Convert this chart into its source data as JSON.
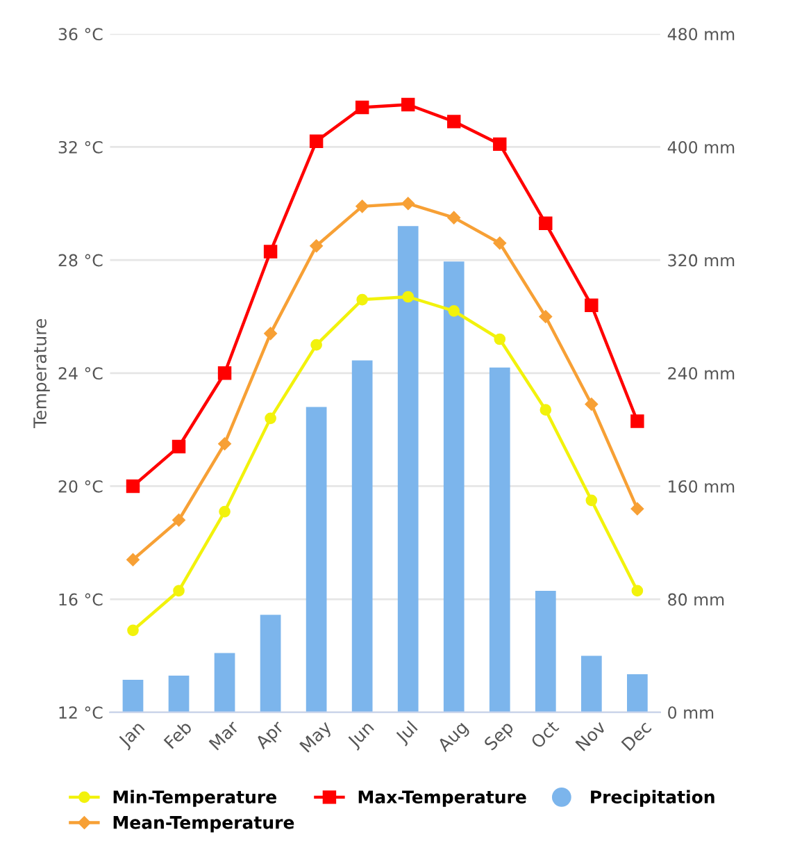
{
  "chart_data": {
    "type": "line",
    "ylabel": "Temperature",
    "categories": [
      "Jan",
      "Feb",
      "Mar",
      "Apr",
      "May",
      "Jun",
      "Jul",
      "Aug",
      "Sep",
      "Oct",
      "Nov",
      "Dec"
    ],
    "series": [
      {
        "name": "Min-Temperature",
        "color": "#f2f20c",
        "marker": "circle",
        "values": [
          14.9,
          16.3,
          19.1,
          22.4,
          25.0,
          26.6,
          26.7,
          26.2,
          25.2,
          22.7,
          19.5,
          16.3
        ]
      },
      {
        "name": "Mean-Temperature",
        "color": "#f7a035",
        "marker": "diamond",
        "values": [
          17.4,
          18.8,
          21.5,
          25.4,
          28.5,
          29.9,
          30.0,
          29.5,
          28.6,
          26.0,
          22.9,
          19.2
        ]
      },
      {
        "name": "Max-Temperature",
        "color": "#ff0000",
        "marker": "square",
        "values": [
          20.0,
          21.4,
          24.0,
          28.3,
          32.2,
          33.4,
          33.5,
          32.9,
          32.1,
          29.3,
          26.4,
          22.3
        ]
      },
      {
        "name": "Precipitation",
        "type": "bar",
        "axis": "y2",
        "color": "#7cb5ec",
        "values": [
          23,
          26,
          42,
          69,
          216,
          249,
          344,
          319,
          244,
          86,
          40,
          27
        ]
      }
    ],
    "ylim": [
      12,
      36
    ],
    "yticks": [
      {
        "value": 12,
        "label": "12 °C"
      },
      {
        "value": 16,
        "label": "16 °C"
      },
      {
        "value": 20,
        "label": "20 °C"
      },
      {
        "value": 24,
        "label": "24 °C"
      },
      {
        "value": 28,
        "label": "28 °C"
      },
      {
        "value": 32,
        "label": "32 °C"
      },
      {
        "value": 36,
        "label": "36 °C"
      }
    ],
    "y2lim": [
      0,
      480
    ],
    "y2ticks": [
      {
        "value": 0,
        "label": "0 mm"
      },
      {
        "value": 80,
        "label": "80 mm"
      },
      {
        "value": 160,
        "label": "160 mm"
      },
      {
        "value": 240,
        "label": "240 mm"
      },
      {
        "value": 320,
        "label": "320 mm"
      },
      {
        "value": 400,
        "label": "400 mm"
      },
      {
        "value": 480,
        "label": "480 mm"
      }
    ],
    "grid": "y",
    "legend": "bottom"
  }
}
